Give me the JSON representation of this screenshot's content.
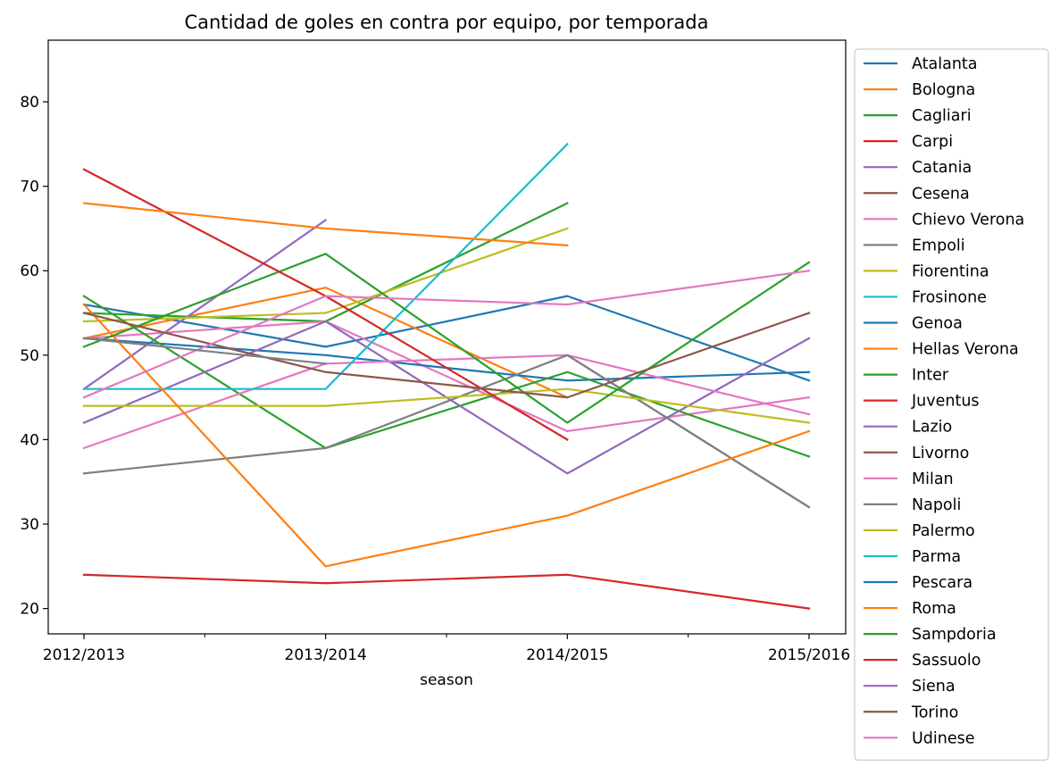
{
  "chart_data": {
    "type": "line",
    "title": "Cantidad de goles en contra por equipo, por temporada",
    "xlabel": "season",
    "ylabel": "",
    "categories": [
      "2012/2013",
      "2013/2014",
      "2014/2015",
      "2015/2016"
    ],
    "ylim": [
      17,
      87.3
    ],
    "yticks": [
      20,
      30,
      40,
      50,
      60,
      70,
      80
    ],
    "grid": false,
    "legend_position": "outside-right",
    "series": [
      {
        "name": "Atalanta",
        "color": "#1f77b4",
        "values": [
          56,
          51,
          57,
          47
        ]
      },
      {
        "name": "Bologna",
        "color": "#ff7f0e",
        "values": [
          52,
          58,
          45,
          null
        ]
      },
      {
        "name": "Cagliari",
        "color": "#2ca02c",
        "values": [
          55,
          54,
          68,
          null
        ]
      },
      {
        "name": "Carpi",
        "color": "#d62728",
        "values": [
          null,
          null,
          null,
          null
        ]
      },
      {
        "name": "Catania",
        "color": "#9467bd",
        "values": [
          46,
          66,
          null,
          null
        ]
      },
      {
        "name": "Cesena",
        "color": "#8c564b",
        "values": [
          null,
          null,
          null,
          null
        ]
      },
      {
        "name": "Chievo Verona",
        "color": "#e377c2",
        "values": [
          52,
          54,
          41,
          45
        ]
      },
      {
        "name": "Empoli",
        "color": "#7f7f7f",
        "values": [
          null,
          null,
          50,
          32
        ]
      },
      {
        "name": "Fiorentina",
        "color": "#bcbd22",
        "values": [
          54,
          55,
          65,
          null
        ]
      },
      {
        "name": "Frosinone",
        "color": "#17becf",
        "values": [
          null,
          null,
          null,
          null
        ]
      },
      {
        "name": "Genoa",
        "color": "#1f77b4",
        "values": [
          52,
          50,
          47,
          48
        ]
      },
      {
        "name": "Hellas Verona",
        "color": "#ff7f0e",
        "values": [
          null,
          null,
          null,
          null
        ]
      },
      {
        "name": "Inter",
        "color": "#2ca02c",
        "values": [
          57,
          39,
          48,
          38
        ]
      },
      {
        "name": "Juventus",
        "color": "#d62728",
        "values": [
          24,
          23,
          24,
          20
        ]
      },
      {
        "name": "Lazio",
        "color": "#9467bd",
        "values": [
          42,
          54,
          36,
          52
        ]
      },
      {
        "name": "Livorno",
        "color": "#8c564b",
        "values": [
          null,
          null,
          null,
          null
        ]
      },
      {
        "name": "Milan",
        "color": "#e377c2",
        "values": [
          39,
          49,
          50,
          43
        ]
      },
      {
        "name": "Napoli",
        "color": "#7f7f7f",
        "values": [
          36,
          39,
          50,
          32
        ]
      },
      {
        "name": "Palermo",
        "color": "#bcbd22",
        "values": [
          44,
          44,
          46,
          42
        ]
      },
      {
        "name": "Parma",
        "color": "#17becf",
        "values": [
          46,
          46,
          75,
          null
        ]
      },
      {
        "name": "Pescara",
        "color": "#1f77b4",
        "values": [
          null,
          null,
          null,
          null
        ]
      },
      {
        "name": "Roma",
        "color": "#ff7f0e",
        "values": [
          56,
          25,
          31,
          41
        ]
      },
      {
        "name": "Sampdoria",
        "color": "#2ca02c",
        "values": [
          51,
          62,
          42,
          61
        ]
      },
      {
        "name": "Sassuolo",
        "color": "#d62728",
        "values": [
          72,
          57,
          40,
          null
        ]
      },
      {
        "name": "Siena",
        "color": "#9467bd",
        "values": [
          null,
          null,
          null,
          null
        ]
      },
      {
        "name": "Torino",
        "color": "#8c564b",
        "values": [
          55,
          48,
          45,
          55
        ]
      },
      {
        "name": "Udinese",
        "color": "#e377c2",
        "values": [
          45,
          57,
          56,
          60
        ]
      }
    ],
    "extra_lines": [
      {
        "color": "#ff7f0e",
        "values": [
          68,
          65,
          63,
          null
        ]
      },
      {
        "color": "#7f7f7f",
        "values": [
          52,
          49,
          null,
          null
        ]
      }
    ]
  }
}
